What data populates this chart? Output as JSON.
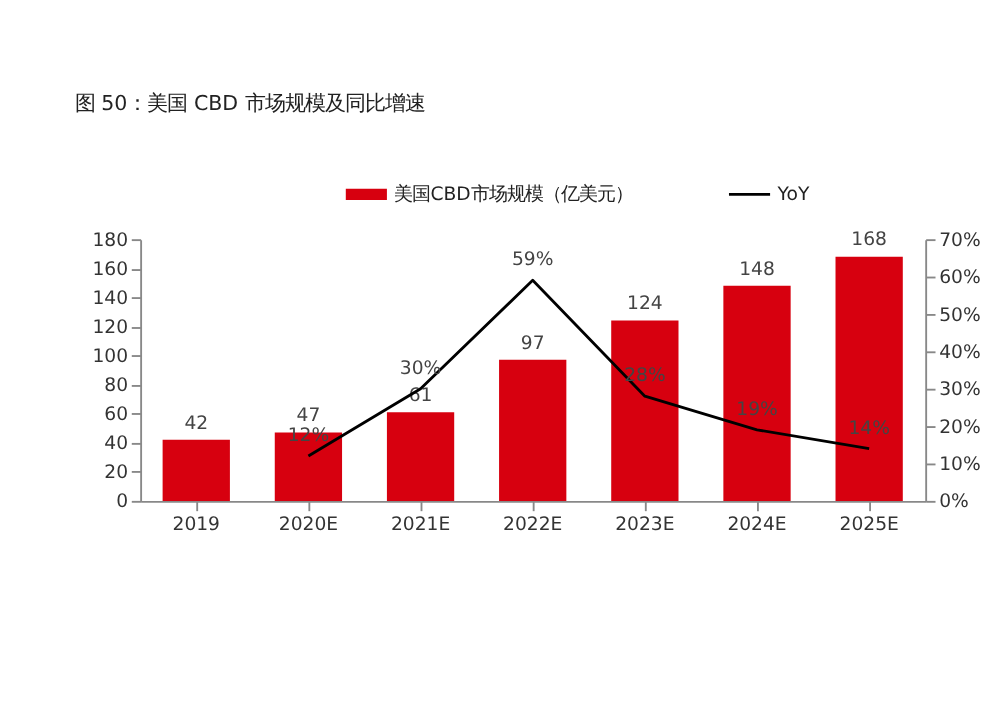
{
  "chart_data": {
    "type": "bar",
    "title": "图 50：美国 CBD 市场规模及同比增速",
    "categories": [
      "2019",
      "2020E",
      "2021E",
      "2022E",
      "2023E",
      "2024E",
      "2025E"
    ],
    "series": [
      {
        "name": "美国CBD市场规模（亿美元）",
        "color": "#d7000f",
        "values": [
          42,
          47,
          61,
          97,
          124,
          148,
          168
        ]
      },
      {
        "name": "YoY",
        "type": "line",
        "axis": "y2",
        "color": "#000000",
        "values": [
          null,
          12,
          30,
          59,
          28,
          19,
          14
        ],
        "value_labels": [
          null,
          "12%",
          "30%",
          "59%",
          "28%",
          "19%",
          "14%"
        ]
      }
    ],
    "data_labels": true,
    "ylim": [
      0,
      180
    ],
    "yticks": [
      0,
      20,
      40,
      60,
      80,
      100,
      120,
      140,
      160,
      180
    ],
    "y2lim": [
      0,
      70
    ],
    "y2ticks": [
      {
        "value": 0,
        "label": "0%"
      },
      {
        "value": 10,
        "label": "10%"
      },
      {
        "value": 20,
        "label": "20%"
      },
      {
        "value": 30,
        "label": "30%"
      },
      {
        "value": 40,
        "label": "40%"
      },
      {
        "value": 50,
        "label": "50%"
      },
      {
        "value": 60,
        "label": "60%"
      },
      {
        "value": 70,
        "label": "70%"
      }
    ],
    "legend": "top",
    "grid": false,
    "marker": "none"
  }
}
